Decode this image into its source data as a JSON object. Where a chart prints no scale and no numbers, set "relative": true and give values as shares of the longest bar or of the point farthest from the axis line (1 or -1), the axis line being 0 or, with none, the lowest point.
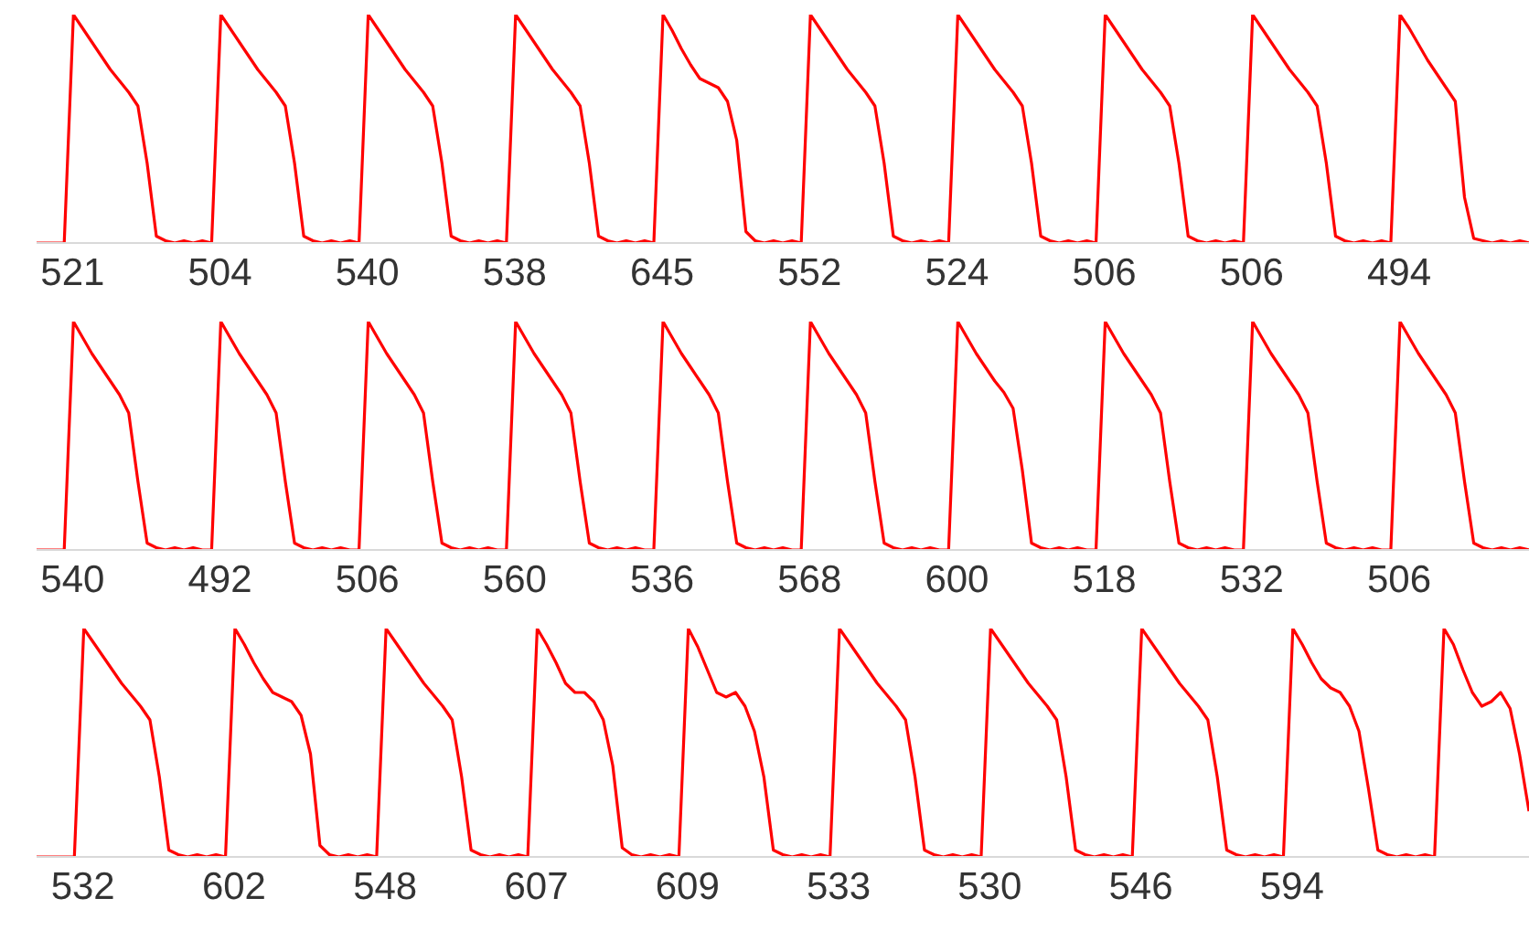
{
  "chart_data": [
    {
      "type": "line",
      "relative": true,
      "color": "#ff0000",
      "categories": [
        null,
        null,
        null,
        null,
        null,
        null,
        null,
        null,
        null,
        null,
        null,
        null,
        null,
        null,
        null,
        null,
        null,
        null,
        null,
        null,
        null,
        null,
        null,
        null,
        null,
        null,
        null,
        null,
        null,
        null,
        null,
        null,
        null,
        null,
        null,
        null,
        null,
        null,
        null,
        null,
        null,
        null,
        null,
        null,
        null,
        null,
        null,
        null,
        null,
        null,
        null,
        null,
        null,
        null,
        null,
        null,
        null,
        null,
        null,
        null,
        null,
        null,
        null,
        null,
        null,
        null,
        null,
        null,
        null,
        null,
        null,
        null,
        null,
        null,
        null,
        null,
        null,
        null,
        null,
        null,
        null,
        null,
        null,
        null,
        null,
        null,
        null,
        null,
        null,
        null,
        null,
        null,
        null,
        null,
        null,
        null,
        null,
        null,
        null,
        null,
        null,
        null,
        null,
        null,
        null,
        null,
        null,
        null,
        null,
        null,
        null,
        null,
        null,
        null,
        null,
        null,
        null,
        null,
        null,
        null,
        null,
        null,
        null,
        null,
        null,
        null,
        null,
        null,
        null,
        null,
        null,
        null,
        null,
        null,
        null,
        null,
        null,
        null,
        null,
        null,
        null,
        null,
        null,
        null,
        null,
        null,
        null,
        null,
        null,
        null,
        null,
        null,
        null,
        null,
        null,
        null,
        null,
        null,
        null,
        null,
        null,
        null,
        null
      ],
      "annotations": [
        "521",
        "504",
        "540",
        "538",
        "645",
        "552",
        "524",
        "506",
        "506",
        "494"
      ],
      "series": [
        {
          "values": [
            0,
            0,
            0,
            0,
            1.0,
            0.94,
            0.88,
            0.82,
            0.76,
            0.71,
            0.66,
            0.6,
            0.35,
            0.03,
            0.01,
            0,
            0.01,
            0,
            0.01,
            0,
            1.0,
            0.94,
            0.88,
            0.82,
            0.76,
            0.71,
            0.66,
            0.6,
            0.35,
            0.03,
            0.01,
            0,
            0.01,
            0,
            0.01,
            0,
            1.0,
            0.94,
            0.88,
            0.82,
            0.76,
            0.71,
            0.66,
            0.6,
            0.35,
            0.03,
            0.01,
            0,
            0.01,
            0,
            0.01,
            0,
            1.0,
            0.94,
            0.88,
            0.82,
            0.76,
            0.71,
            0.66,
            0.6,
            0.35,
            0.03,
            0.01,
            0,
            0.01,
            0,
            0.01,
            0,
            1.0,
            0.93,
            0.85,
            0.78,
            0.72,
            0.7,
            0.68,
            0.62,
            0.45,
            0.05,
            0.01,
            0,
            0.01,
            0,
            0.01,
            0,
            1.0,
            0.94,
            0.88,
            0.82,
            0.76,
            0.71,
            0.66,
            0.6,
            0.35,
            0.03,
            0.01,
            0,
            0.01,
            0,
            0.01,
            0,
            1.0,
            0.94,
            0.88,
            0.82,
            0.76,
            0.71,
            0.66,
            0.6,
            0.35,
            0.03,
            0.01,
            0,
            0.01,
            0,
            0.01,
            0,
            1.0,
            0.94,
            0.88,
            0.82,
            0.76,
            0.71,
            0.66,
            0.6,
            0.35,
            0.03,
            0.01,
            0,
            0.01,
            0,
            0.01,
            0,
            1.0,
            0.94,
            0.88,
            0.82,
            0.76,
            0.71,
            0.66,
            0.6,
            0.35,
            0.03,
            0.01,
            0,
            0.01,
            0,
            0.01,
            0,
            1.0,
            0.94,
            0.87,
            0.8,
            0.74,
            0.68,
            0.62,
            0.2,
            0.02,
            0.01,
            0,
            0.01,
            0,
            0.01,
            0
          ]
        }
      ]
    },
    {
      "type": "line",
      "relative": true,
      "color": "#ff0000",
      "categories": [
        null,
        null,
        null,
        null,
        null,
        null,
        null,
        null,
        null,
        null,
        null,
        null,
        null,
        null,
        null,
        null,
        null,
        null,
        null,
        null,
        null,
        null,
        null,
        null,
        null,
        null,
        null,
        null,
        null,
        null,
        null,
        null,
        null,
        null,
        null,
        null,
        null,
        null,
        null,
        null,
        null,
        null,
        null,
        null,
        null,
        null,
        null,
        null,
        null,
        null,
        null,
        null,
        null,
        null,
        null,
        null,
        null,
        null,
        null,
        null,
        null,
        null,
        null,
        null,
        null,
        null,
        null,
        null,
        null,
        null,
        null,
        null,
        null,
        null,
        null,
        null,
        null,
        null,
        null,
        null,
        null,
        null,
        null,
        null,
        null,
        null,
        null,
        null,
        null,
        null,
        null,
        null,
        null,
        null,
        null,
        null,
        null,
        null,
        null,
        null,
        null,
        null,
        null,
        null,
        null,
        null,
        null,
        null,
        null,
        null,
        null,
        null,
        null,
        null,
        null,
        null,
        null,
        null,
        null,
        null,
        null,
        null,
        null,
        null,
        null,
        null,
        null,
        null,
        null,
        null,
        null,
        null,
        null,
        null,
        null,
        null,
        null,
        null,
        null,
        null,
        null,
        null,
        null,
        null,
        null,
        null,
        null,
        null,
        null,
        null,
        null,
        null,
        null,
        null,
        null,
        null,
        null,
        null,
        null,
        null,
        null,
        null,
        null
      ],
      "annotations": [
        "540",
        "492",
        "506",
        "560",
        "536",
        "568",
        "600",
        "518",
        "532",
        "506"
      ],
      "series": [
        {
          "values": [
            0,
            0,
            0,
            0,
            1.0,
            0.93,
            0.86,
            0.8,
            0.74,
            0.68,
            0.6,
            0.3,
            0.03,
            0.01,
            0,
            0.01,
            0,
            0.01,
            0,
            0,
            1.0,
            0.93,
            0.86,
            0.8,
            0.74,
            0.68,
            0.6,
            0.3,
            0.03,
            0.01,
            0,
            0.01,
            0,
            0.01,
            0,
            0,
            1.0,
            0.93,
            0.86,
            0.8,
            0.74,
            0.68,
            0.6,
            0.3,
            0.03,
            0.01,
            0,
            0.01,
            0,
            0.01,
            0,
            0,
            1.0,
            0.93,
            0.86,
            0.8,
            0.74,
            0.68,
            0.6,
            0.3,
            0.03,
            0.01,
            0,
            0.01,
            0,
            0.01,
            0,
            0,
            1.0,
            0.93,
            0.86,
            0.8,
            0.74,
            0.68,
            0.6,
            0.3,
            0.03,
            0.01,
            0,
            0.01,
            0,
            0.01,
            0,
            0,
            1.0,
            0.93,
            0.86,
            0.8,
            0.74,
            0.68,
            0.6,
            0.3,
            0.03,
            0.01,
            0,
            0.01,
            0,
            0.01,
            0,
            0,
            1.0,
            0.93,
            0.86,
            0.8,
            0.74,
            0.69,
            0.62,
            0.35,
            0.03,
            0.01,
            0,
            0.01,
            0,
            0.01,
            0,
            0,
            1.0,
            0.93,
            0.86,
            0.8,
            0.74,
            0.68,
            0.6,
            0.3,
            0.03,
            0.01,
            0,
            0.01,
            0,
            0.01,
            0,
            0,
            1.0,
            0.93,
            0.86,
            0.8,
            0.74,
            0.68,
            0.6,
            0.3,
            0.03,
            0.01,
            0,
            0.01,
            0,
            0.01,
            0,
            0,
            1.0,
            0.93,
            0.86,
            0.8,
            0.74,
            0.68,
            0.6,
            0.3,
            0.03,
            0.01,
            0,
            0.01,
            0,
            0.01,
            0
          ]
        }
      ]
    },
    {
      "type": "line",
      "relative": true,
      "color": "#ff0000",
      "categories": [
        null,
        null,
        null,
        null,
        null,
        null,
        null,
        null,
        null,
        null,
        null,
        null,
        null,
        null,
        null,
        null,
        null,
        null,
        null,
        null,
        null,
        null,
        null,
        null,
        null,
        null,
        null,
        null,
        null,
        null,
        null,
        null,
        null,
        null,
        null,
        null,
        null,
        null,
        null,
        null,
        null,
        null,
        null,
        null,
        null,
        null,
        null,
        null,
        null,
        null,
        null,
        null,
        null,
        null,
        null,
        null,
        null,
        null,
        null,
        null,
        null,
        null,
        null,
        null,
        null,
        null,
        null,
        null,
        null,
        null,
        null,
        null,
        null,
        null,
        null,
        null,
        null,
        null,
        null,
        null,
        null,
        null,
        null,
        null,
        null,
        null,
        null,
        null,
        null,
        null,
        null,
        null,
        null,
        null,
        null,
        null,
        null,
        null,
        null,
        null,
        null,
        null,
        null,
        null,
        null,
        null,
        null,
        null,
        null,
        null,
        null,
        null,
        null,
        null,
        null,
        null,
        null,
        null,
        null,
        null,
        null,
        null,
        null,
        null,
        null,
        null,
        null,
        null,
        null,
        null,
        null,
        null,
        null,
        null,
        null,
        null,
        null,
        null,
        null,
        null,
        null,
        null,
        null,
        null,
        null,
        null,
        null,
        null,
        null,
        null,
        null,
        null,
        null,
        null,
        null,
        null,
        null,
        null,
        null
      ],
      "annotations": [
        "532",
        "602",
        "548",
        "607",
        "609",
        "533",
        "530",
        "546",
        "594"
      ],
      "series": [
        {
          "values": [
            0,
            0,
            0,
            0,
            0,
            1.0,
            0.94,
            0.88,
            0.82,
            0.76,
            0.71,
            0.66,
            0.6,
            0.35,
            0.03,
            0.01,
            0,
            0.01,
            0,
            0.01,
            0,
            1.0,
            0.93,
            0.85,
            0.78,
            0.72,
            0.7,
            0.68,
            0.62,
            0.45,
            0.05,
            0.01,
            0,
            0.01,
            0,
            0.01,
            0,
            1.0,
            0.94,
            0.88,
            0.82,
            0.76,
            0.71,
            0.66,
            0.6,
            0.35,
            0.03,
            0.01,
            0,
            0.01,
            0,
            0.01,
            0,
            1.0,
            0.93,
            0.85,
            0.76,
            0.72,
            0.72,
            0.68,
            0.6,
            0.4,
            0.04,
            0.01,
            0,
            0.01,
            0,
            0.01,
            0,
            1.0,
            0.92,
            0.82,
            0.72,
            0.7,
            0.72,
            0.66,
            0.55,
            0.35,
            0.03,
            0.01,
            0,
            0.01,
            0,
            0.01,
            0,
            1.0,
            0.94,
            0.88,
            0.82,
            0.76,
            0.71,
            0.66,
            0.6,
            0.35,
            0.03,
            0.01,
            0,
            0.01,
            0,
            0.01,
            0,
            1.0,
            0.94,
            0.88,
            0.82,
            0.76,
            0.71,
            0.66,
            0.6,
            0.35,
            0.03,
            0.01,
            0,
            0.01,
            0,
            0.01,
            0,
            1.0,
            0.94,
            0.88,
            0.82,
            0.76,
            0.71,
            0.66,
            0.6,
            0.35,
            0.03,
            0.01,
            0,
            0.01,
            0,
            0.01,
            0,
            1.0,
            0.93,
            0.85,
            0.78,
            0.74,
            0.72,
            0.66,
            0.55,
            0.3,
            0.03,
            0.01,
            0,
            0.01,
            0,
            0.01,
            0,
            1.0,
            0.93,
            0.82,
            0.72,
            0.66,
            0.68,
            0.72,
            0.65,
            0.45,
            0.2
          ]
        }
      ]
    }
  ]
}
